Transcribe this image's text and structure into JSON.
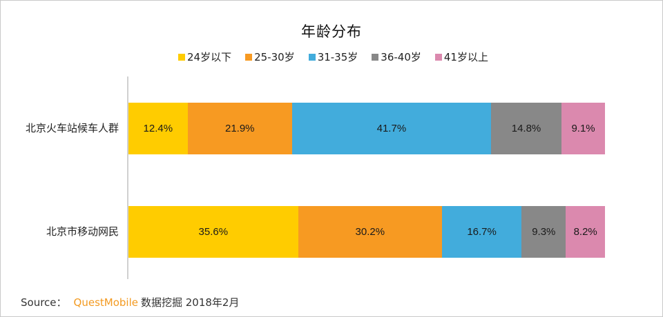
{
  "chart_data": {
    "type": "bar",
    "orientation": "horizontal",
    "stacked": true,
    "normalized": true,
    "title": "年龄分布",
    "categories": [
      "北京火车站候车人群",
      "北京市移动网民"
    ],
    "series": [
      {
        "name": "24岁以下",
        "color": "#ffcc00",
        "values": [
          12.4,
          35.6
        ],
        "labels": [
          "12.4%",
          "35.6%"
        ]
      },
      {
        "name": "25-30岁",
        "color": "#f79a22",
        "values": [
          21.9,
          30.2
        ],
        "labels": [
          "21.9%",
          "30.2%"
        ]
      },
      {
        "name": "31-35岁",
        "color": "#42acdc",
        "values": [
          41.7,
          16.7
        ],
        "labels": [
          "41.7%",
          "16.7%"
        ]
      },
      {
        "name": "36-40岁",
        "color": "#888888",
        "values": [
          14.8,
          9.3
        ],
        "labels": [
          "14.8%",
          "9.3%"
        ]
      },
      {
        "name": "41岁以上",
        "color": "#db89ae",
        "values": [
          9.1,
          8.2
        ],
        "labels": [
          "9.1%",
          "8.2%"
        ]
      }
    ],
    "xlabel": "",
    "ylabel": "",
    "xlim": [
      0,
      100
    ],
    "grid": false,
    "legend_position": "top",
    "data_labels": true
  },
  "title": "年龄分布",
  "legend": [
    {
      "label": "24岁以下",
      "color": "#ffcc00"
    },
    {
      "label": "25-30岁",
      "color": "#f79a22"
    },
    {
      "label": "31-35岁",
      "color": "#42acdc"
    },
    {
      "label": "36-40岁",
      "color": "#888888"
    },
    {
      "label": "41岁以上",
      "color": "#db89ae"
    }
  ],
  "rows": [
    {
      "label": "北京火车站候车人群",
      "segments": [
        "12.4%",
        "21.9%",
        "41.7%",
        "14.8%",
        "9.1%"
      ]
    },
    {
      "label": "北京市移动网民",
      "segments": [
        "35.6%",
        "30.2%",
        "16.7%",
        "9.3%",
        "8.2%"
      ]
    }
  ],
  "footer": {
    "source_label": "Source：",
    "brand": "QuestMobile",
    "note": "数据挖掘 2018年2月"
  }
}
